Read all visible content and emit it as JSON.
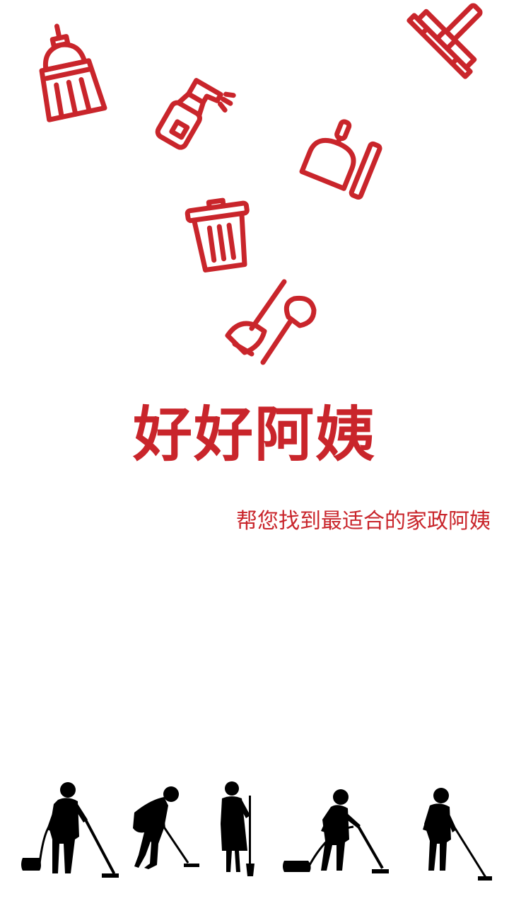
{
  "app": {
    "title": "好好阿姨",
    "tagline": "帮您找到最适合的家政阿姨"
  },
  "colors": {
    "accent": "#c9252b",
    "background": "#ffffff",
    "silhouette": "#000000"
  },
  "icons": [
    "broom-icon",
    "spray-bottle-icon",
    "squeegee-icon",
    "dustpan-brush-icon",
    "trash-can-icon",
    "plunger-icon"
  ],
  "illustrations": [
    "woman-vacuuming-silhouette",
    "woman-bending-sweeping-silhouette",
    "woman-holding-broom-silhouette",
    "woman-vacuuming-canister-silhouette",
    "woman-mopping-silhouette"
  ]
}
